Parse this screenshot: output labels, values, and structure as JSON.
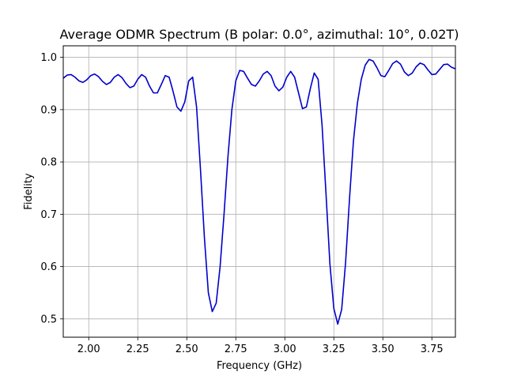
{
  "chart_data": {
    "type": "line",
    "title": "Average ODMR Spectrum (B polar: 0.0°, azimuthal: 10°, 0.02T)",
    "xlabel": "Frequency (GHz)",
    "ylabel": "Fidelity",
    "xlim": [
      1.87,
      3.87
    ],
    "ylim": [
      0.465,
      1.022
    ],
    "xticks": [
      2.0,
      2.25,
      2.5,
      2.75,
      3.0,
      3.25,
      3.5,
      3.75
    ],
    "xtick_labels": [
      "2.00",
      "2.25",
      "2.50",
      "2.75",
      "3.00",
      "3.25",
      "3.50",
      "3.75"
    ],
    "yticks": [
      0.5,
      0.6,
      0.7,
      0.8,
      0.9,
      1.0
    ],
    "ytick_labels": [
      "0.5",
      "0.6",
      "0.7",
      "0.8",
      "0.9",
      "1.0"
    ],
    "grid": true,
    "line_color": "#0000cc",
    "series": [
      {
        "x": [
          1.87,
          1.89,
          1.91,
          1.93,
          1.95,
          1.97,
          1.99,
          2.01,
          2.03,
          2.05,
          2.07,
          2.09,
          2.11,
          2.13,
          2.15,
          2.17,
          2.19,
          2.21,
          2.23,
          2.25,
          2.27,
          2.29,
          2.31,
          2.33,
          2.35,
          2.37,
          2.39,
          2.41,
          2.43,
          2.45,
          2.47,
          2.49,
          2.51,
          2.53,
          2.55,
          2.57,
          2.59,
          2.61,
          2.63,
          2.65,
          2.67,
          2.69,
          2.71,
          2.73,
          2.75,
          2.77,
          2.79,
          2.81,
          2.83,
          2.85,
          2.87,
          2.89,
          2.91,
          2.93,
          2.95,
          2.97,
          2.99,
          3.01,
          3.03,
          3.05,
          3.07,
          3.09,
          3.11,
          3.13,
          3.15,
          3.17,
          3.19,
          3.21,
          3.23,
          3.25,
          3.27,
          3.29,
          3.31,
          3.33,
          3.35,
          3.37,
          3.39,
          3.41,
          3.43,
          3.45,
          3.47,
          3.49,
          3.51,
          3.53,
          3.55,
          3.57,
          3.59,
          3.61,
          3.63,
          3.65,
          3.67,
          3.69,
          3.71,
          3.73,
          3.75,
          3.77,
          3.79,
          3.81,
          3.83,
          3.85,
          3.87
        ],
        "y": [
          0.96,
          0.966,
          0.967,
          0.962,
          0.955,
          0.952,
          0.957,
          0.965,
          0.968,
          0.963,
          0.954,
          0.948,
          0.952,
          0.962,
          0.967,
          0.961,
          0.95,
          0.942,
          0.945,
          0.958,
          0.967,
          0.962,
          0.945,
          0.932,
          0.932,
          0.948,
          0.965,
          0.962,
          0.935,
          0.905,
          0.897,
          0.915,
          0.955,
          0.962,
          0.905,
          0.785,
          0.655,
          0.55,
          0.514,
          0.53,
          0.6,
          0.7,
          0.81,
          0.9,
          0.955,
          0.975,
          0.973,
          0.96,
          0.948,
          0.945,
          0.955,
          0.968,
          0.973,
          0.965,
          0.945,
          0.936,
          0.943,
          0.962,
          0.973,
          0.962,
          0.932,
          0.902,
          0.905,
          0.94,
          0.97,
          0.958,
          0.87,
          0.74,
          0.605,
          0.52,
          0.49,
          0.518,
          0.608,
          0.73,
          0.84,
          0.912,
          0.958,
          0.985,
          0.996,
          0.993,
          0.98,
          0.965,
          0.963,
          0.975,
          0.988,
          0.993,
          0.987,
          0.972,
          0.965,
          0.97,
          0.982,
          0.989,
          0.986,
          0.976,
          0.967,
          0.968,
          0.977,
          0.986,
          0.987,
          0.981,
          0.978
        ]
      }
    ]
  }
}
